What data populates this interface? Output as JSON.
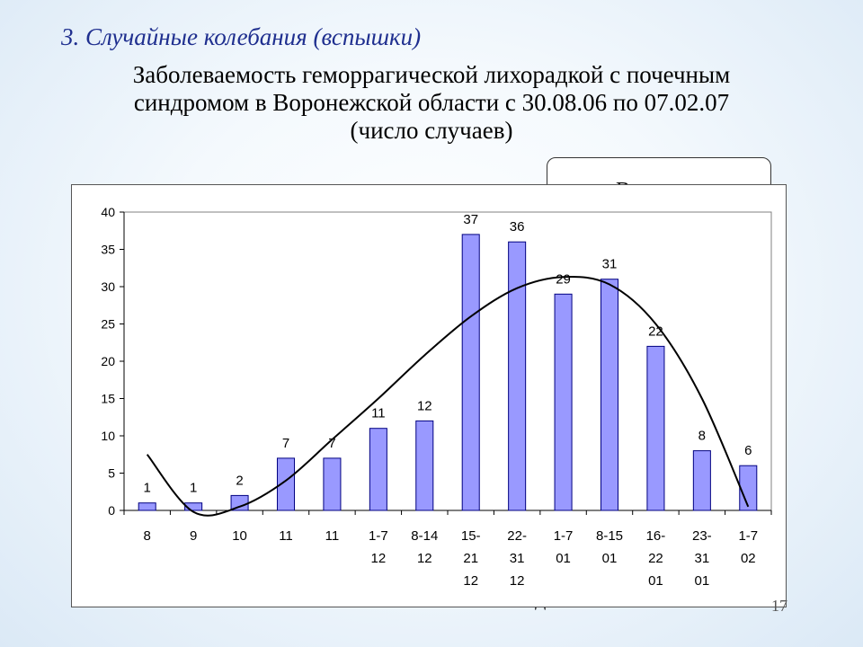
{
  "slide": {
    "heading": "3. Случайные колебания (вспышки)",
    "title_lines": [
      "Заболеваемость геморрагической лихорадкой с почечным",
      "синдромом в  Воронежской области с 30.08.06 по 07.02.07",
      "(число случаев)"
    ],
    "callout_text": "Вспышка",
    "x_axis_note": "недели",
    "page_number": "17"
  },
  "chart_data": {
    "type": "bar",
    "categories": [
      [
        "8"
      ],
      [
        "9"
      ],
      [
        "10"
      ],
      [
        "11"
      ],
      [
        "11"
      ],
      [
        "1-7",
        "12"
      ],
      [
        "8-14",
        "12"
      ],
      [
        "15-",
        "21",
        "12"
      ],
      [
        "22-",
        "31",
        "12"
      ],
      [
        "1-7",
        "01"
      ],
      [
        "8-15",
        "01"
      ],
      [
        "16-",
        "22",
        "01"
      ],
      [
        "23-",
        "31",
        "01"
      ],
      [
        "1-7",
        "02"
      ]
    ],
    "values": [
      1,
      1,
      2,
      7,
      7,
      11,
      12,
      37,
      36,
      29,
      31,
      22,
      8,
      6
    ],
    "data_labels": [
      "1",
      "1",
      "2",
      "7",
      "7",
      "11",
      "12",
      "37",
      "36",
      "29",
      "31",
      "22",
      "8",
      "6"
    ],
    "ylim": [
      0,
      40
    ],
    "yticks": [
      "0",
      "5",
      "10",
      "15",
      "20",
      "25",
      "30",
      "35",
      "40"
    ],
    "grid": false,
    "legend": "none",
    "bar_color": "#9999ff",
    "bar_stroke": "#000080",
    "trend_line": {
      "type": "polynomial",
      "x": [
        0,
        1,
        2,
        3,
        4,
        5,
        6,
        7,
        8,
        9,
        10,
        11,
        12,
        13
      ],
      "y": [
        7.5,
        -0.2,
        0.5,
        4.0,
        9.5,
        15.0,
        20.8,
        26.0,
        29.8,
        31.3,
        30.3,
        25.0,
        15.0,
        0.5
      ]
    }
  }
}
